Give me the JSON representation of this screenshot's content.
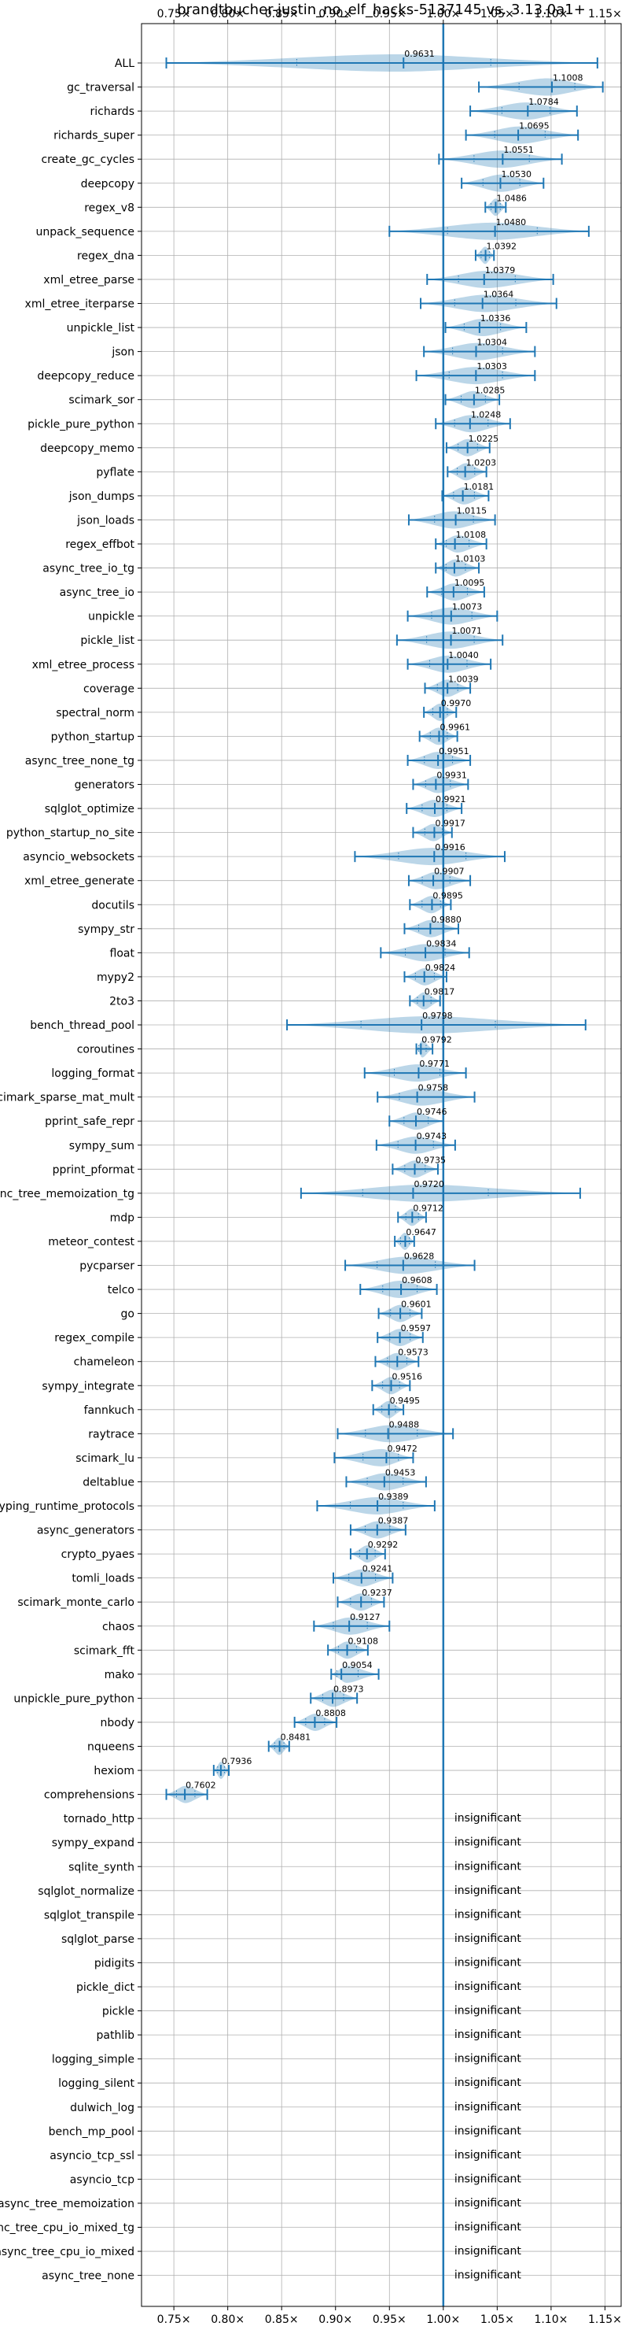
{
  "chart_data": {
    "type": "violin",
    "title": "brandtbucher-justin_no_elf_hacks-5137145 vs. 3.13.0a1+",
    "xlabel": "",
    "ylabel": "",
    "xlim": [
      0.72,
      1.165
    ],
    "x_ticks": [
      0.75,
      0.8,
      0.85,
      0.9,
      0.95,
      1.0,
      1.05,
      1.1,
      1.15
    ],
    "x_tick_labels": [
      "0.75×",
      "0.80×",
      "0.85×",
      "0.90×",
      "0.95×",
      "1.00×",
      "1.05×",
      "1.10×",
      "1.15×"
    ],
    "reference_line": 1.0,
    "grid": true,
    "insignificant_text": "insignificant",
    "colors": {
      "line": "#1f77b4",
      "violin": "#1f77b4",
      "grid": "#b0b0b0"
    },
    "rows": [
      {
        "name": "ALL",
        "median": 0.9631,
        "min": 0.743,
        "max": 1.143,
        "label": "0.9631"
      },
      {
        "name": "gc_traversal",
        "median": 1.1008,
        "min": 1.033,
        "max": 1.148,
        "label": "1.1008"
      },
      {
        "name": "richards",
        "median": 1.0784,
        "min": 1.025,
        "max": 1.124,
        "label": "1.0784"
      },
      {
        "name": "richards_super",
        "median": 1.0695,
        "min": 1.021,
        "max": 1.125,
        "label": "1.0695"
      },
      {
        "name": "create_gc_cycles",
        "median": 1.0551,
        "min": 0.996,
        "max": 1.11,
        "label": "1.0551"
      },
      {
        "name": "deepcopy",
        "median": 1.053,
        "min": 1.017,
        "max": 1.093,
        "label": "1.0530"
      },
      {
        "name": "regex_v8",
        "median": 1.0486,
        "min": 1.039,
        "max": 1.058,
        "label": "1.0486"
      },
      {
        "name": "unpack_sequence",
        "median": 1.048,
        "min": 0.95,
        "max": 1.135,
        "label": "1.0480"
      },
      {
        "name": "regex_dna",
        "median": 1.0392,
        "min": 1.03,
        "max": 1.047,
        "label": "1.0392"
      },
      {
        "name": "xml_etree_parse",
        "median": 1.0379,
        "min": 0.985,
        "max": 1.102,
        "label": "1.0379"
      },
      {
        "name": "xml_etree_iterparse",
        "median": 1.0364,
        "min": 0.979,
        "max": 1.105,
        "label": "1.0364"
      },
      {
        "name": "unpickle_list",
        "median": 1.0336,
        "min": 1.002,
        "max": 1.077,
        "label": "1.0336"
      },
      {
        "name": "json",
        "median": 1.0304,
        "min": 0.982,
        "max": 1.085,
        "label": "1.0304"
      },
      {
        "name": "deepcopy_reduce",
        "median": 1.0303,
        "min": 0.975,
        "max": 1.085,
        "label": "1.0303"
      },
      {
        "name": "scimark_sor",
        "median": 1.0285,
        "min": 1.002,
        "max": 1.052,
        "label": "1.0285"
      },
      {
        "name": "pickle_pure_python",
        "median": 1.0248,
        "min": 0.993,
        "max": 1.062,
        "label": "1.0248"
      },
      {
        "name": "deepcopy_memo",
        "median": 1.0225,
        "min": 1.003,
        "max": 1.043,
        "label": "1.0225"
      },
      {
        "name": "pyflate",
        "median": 1.0203,
        "min": 1.004,
        "max": 1.04,
        "label": "1.0203"
      },
      {
        "name": "json_dumps",
        "median": 1.0181,
        "min": 0.999,
        "max": 1.042,
        "label": "1.0181"
      },
      {
        "name": "json_loads",
        "median": 1.0115,
        "min": 0.968,
        "max": 1.048,
        "label": "1.0115"
      },
      {
        "name": "regex_effbot",
        "median": 1.0108,
        "min": 0.993,
        "max": 1.04,
        "label": "1.0108"
      },
      {
        "name": "async_tree_io_tg",
        "median": 1.0103,
        "min": 0.993,
        "max": 1.033,
        "label": "1.0103"
      },
      {
        "name": "async_tree_io",
        "median": 1.0095,
        "min": 0.985,
        "max": 1.038,
        "label": "1.0095"
      },
      {
        "name": "unpickle",
        "median": 1.0073,
        "min": 0.967,
        "max": 1.05,
        "label": "1.0073"
      },
      {
        "name": "pickle_list",
        "median": 1.0071,
        "min": 0.957,
        "max": 1.055,
        "label": "1.0071"
      },
      {
        "name": "xml_etree_process",
        "median": 1.004,
        "min": 0.967,
        "max": 1.044,
        "label": "1.0040"
      },
      {
        "name": "coverage",
        "median": 1.0039,
        "min": 0.983,
        "max": 1.025,
        "label": "1.0039"
      },
      {
        "name": "spectral_norm",
        "median": 0.997,
        "min": 0.982,
        "max": 1.012,
        "label": "0.9970"
      },
      {
        "name": "python_startup",
        "median": 0.9961,
        "min": 0.978,
        "max": 1.013,
        "label": "0.9961"
      },
      {
        "name": "async_tree_none_tg",
        "median": 0.9951,
        "min": 0.967,
        "max": 1.025,
        "label": "0.9951"
      },
      {
        "name": "generators",
        "median": 0.9931,
        "min": 0.972,
        "max": 1.023,
        "label": "0.9931"
      },
      {
        "name": "sqlglot_optimize",
        "median": 0.9921,
        "min": 0.966,
        "max": 1.017,
        "label": "0.9921"
      },
      {
        "name": "python_startup_no_site",
        "median": 0.9917,
        "min": 0.972,
        "max": 1.008,
        "label": "0.9917"
      },
      {
        "name": "asyncio_websockets",
        "median": 0.9916,
        "min": 0.918,
        "max": 1.057,
        "label": "0.9916"
      },
      {
        "name": "xml_etree_generate",
        "median": 0.9907,
        "min": 0.968,
        "max": 1.025,
        "label": "0.9907"
      },
      {
        "name": "docutils",
        "median": 0.9895,
        "min": 0.969,
        "max": 1.007,
        "label": "0.9895"
      },
      {
        "name": "sympy_str",
        "median": 0.988,
        "min": 0.964,
        "max": 1.014,
        "label": "0.9880"
      },
      {
        "name": "float",
        "median": 0.9834,
        "min": 0.942,
        "max": 1.024,
        "label": "0.9834"
      },
      {
        "name": "mypy2",
        "median": 0.9824,
        "min": 0.964,
        "max": 1.003,
        "label": "0.9824"
      },
      {
        "name": "2to3",
        "median": 0.9817,
        "min": 0.969,
        "max": 0.997,
        "label": "0.9817"
      },
      {
        "name": "bench_thread_pool",
        "median": 0.9798,
        "min": 0.855,
        "max": 1.132,
        "label": "0.9798"
      },
      {
        "name": "coroutines",
        "median": 0.9792,
        "min": 0.975,
        "max": 0.99,
        "label": "0.9792"
      },
      {
        "name": "logging_format",
        "median": 0.9771,
        "min": 0.927,
        "max": 1.021,
        "label": "0.9771"
      },
      {
        "name": "scimark_sparse_mat_mult",
        "median": 0.9758,
        "min": 0.939,
        "max": 1.029,
        "label": "0.9758"
      },
      {
        "name": "pprint_safe_repr",
        "median": 0.9746,
        "min": 0.95,
        "max": 1.0,
        "label": "0.9746"
      },
      {
        "name": "sympy_sum",
        "median": 0.9743,
        "min": 0.938,
        "max": 1.011,
        "label": "0.9743"
      },
      {
        "name": "pprint_pformat",
        "median": 0.9735,
        "min": 0.953,
        "max": 0.995,
        "label": "0.9735"
      },
      {
        "name": "async_tree_memoization_tg",
        "median": 0.972,
        "min": 0.868,
        "max": 1.127,
        "label": "0.9720"
      },
      {
        "name": "mdp",
        "median": 0.9712,
        "min": 0.958,
        "max": 0.984,
        "label": "0.9712"
      },
      {
        "name": "meteor_contest",
        "median": 0.9647,
        "min": 0.955,
        "max": 0.973,
        "label": "0.9647"
      },
      {
        "name": "pycparser",
        "median": 0.9628,
        "min": 0.909,
        "max": 1.029,
        "label": "0.9628"
      },
      {
        "name": "telco",
        "median": 0.9608,
        "min": 0.923,
        "max": 0.994,
        "label": "0.9608"
      },
      {
        "name": "go",
        "median": 0.9601,
        "min": 0.94,
        "max": 0.98,
        "label": "0.9601"
      },
      {
        "name": "regex_compile",
        "median": 0.9597,
        "min": 0.939,
        "max": 0.981,
        "label": "0.9597"
      },
      {
        "name": "chameleon",
        "median": 0.9573,
        "min": 0.937,
        "max": 0.977,
        "label": "0.9573"
      },
      {
        "name": "sympy_integrate",
        "median": 0.9516,
        "min": 0.934,
        "max": 0.969,
        "label": "0.9516"
      },
      {
        "name": "fannkuch",
        "median": 0.9495,
        "min": 0.935,
        "max": 0.963,
        "label": "0.9495"
      },
      {
        "name": "raytrace",
        "median": 0.9488,
        "min": 0.902,
        "max": 1.009,
        "label": "0.9488"
      },
      {
        "name": "scimark_lu",
        "median": 0.9472,
        "min": 0.899,
        "max": 0.972,
        "label": "0.9472"
      },
      {
        "name": "deltablue",
        "median": 0.9453,
        "min": 0.91,
        "max": 0.984,
        "label": "0.9453"
      },
      {
        "name": "typing_runtime_protocols",
        "median": 0.9389,
        "min": 0.883,
        "max": 0.992,
        "label": "0.9389"
      },
      {
        "name": "async_generators",
        "median": 0.9387,
        "min": 0.914,
        "max": 0.965,
        "label": "0.9387"
      },
      {
        "name": "crypto_pyaes",
        "median": 0.9292,
        "min": 0.914,
        "max": 0.946,
        "label": "0.9292"
      },
      {
        "name": "tomli_loads",
        "median": 0.9241,
        "min": 0.898,
        "max": 0.953,
        "label": "0.9241"
      },
      {
        "name": "scimark_monte_carlo",
        "median": 0.9237,
        "min": 0.902,
        "max": 0.945,
        "label": "0.9237"
      },
      {
        "name": "chaos",
        "median": 0.9127,
        "min": 0.88,
        "max": 0.95,
        "label": "0.9127"
      },
      {
        "name": "scimark_fft",
        "median": 0.9108,
        "min": 0.893,
        "max": 0.93,
        "label": "0.9108"
      },
      {
        "name": "mako",
        "median": 0.9054,
        "min": 0.896,
        "max": 0.94,
        "label": "0.9054"
      },
      {
        "name": "unpickle_pure_python",
        "median": 0.8973,
        "min": 0.877,
        "max": 0.92,
        "label": "0.8973"
      },
      {
        "name": "nbody",
        "median": 0.8808,
        "min": 0.862,
        "max": 0.901,
        "label": "0.8808"
      },
      {
        "name": "nqueens",
        "median": 0.8481,
        "min": 0.838,
        "max": 0.857,
        "label": "0.8481"
      },
      {
        "name": "hexiom",
        "median": 0.7936,
        "min": 0.787,
        "max": 0.801,
        "label": "0.7936"
      },
      {
        "name": "comprehensions",
        "median": 0.7602,
        "min": 0.743,
        "max": 0.781,
        "label": "0.7602"
      },
      {
        "name": "tornado_http",
        "insignificant": true
      },
      {
        "name": "sympy_expand",
        "insignificant": true
      },
      {
        "name": "sqlite_synth",
        "insignificant": true
      },
      {
        "name": "sqlglot_normalize",
        "insignificant": true
      },
      {
        "name": "sqlglot_transpile",
        "insignificant": true
      },
      {
        "name": "sqlglot_parse",
        "insignificant": true
      },
      {
        "name": "pidigits",
        "insignificant": true
      },
      {
        "name": "pickle_dict",
        "insignificant": true
      },
      {
        "name": "pickle",
        "insignificant": true
      },
      {
        "name": "pathlib",
        "insignificant": true
      },
      {
        "name": "logging_simple",
        "insignificant": true
      },
      {
        "name": "logging_silent",
        "insignificant": true
      },
      {
        "name": "dulwich_log",
        "insignificant": true
      },
      {
        "name": "bench_mp_pool",
        "insignificant": true
      },
      {
        "name": "asyncio_tcp_ssl",
        "insignificant": true
      },
      {
        "name": "asyncio_tcp",
        "insignificant": true
      },
      {
        "name": "async_tree_memoization",
        "insignificant": true
      },
      {
        "name": "async_tree_cpu_io_mixed_tg",
        "insignificant": true
      },
      {
        "name": "async_tree_cpu_io_mixed",
        "insignificant": true
      },
      {
        "name": "async_tree_none",
        "insignificant": true
      }
    ]
  }
}
